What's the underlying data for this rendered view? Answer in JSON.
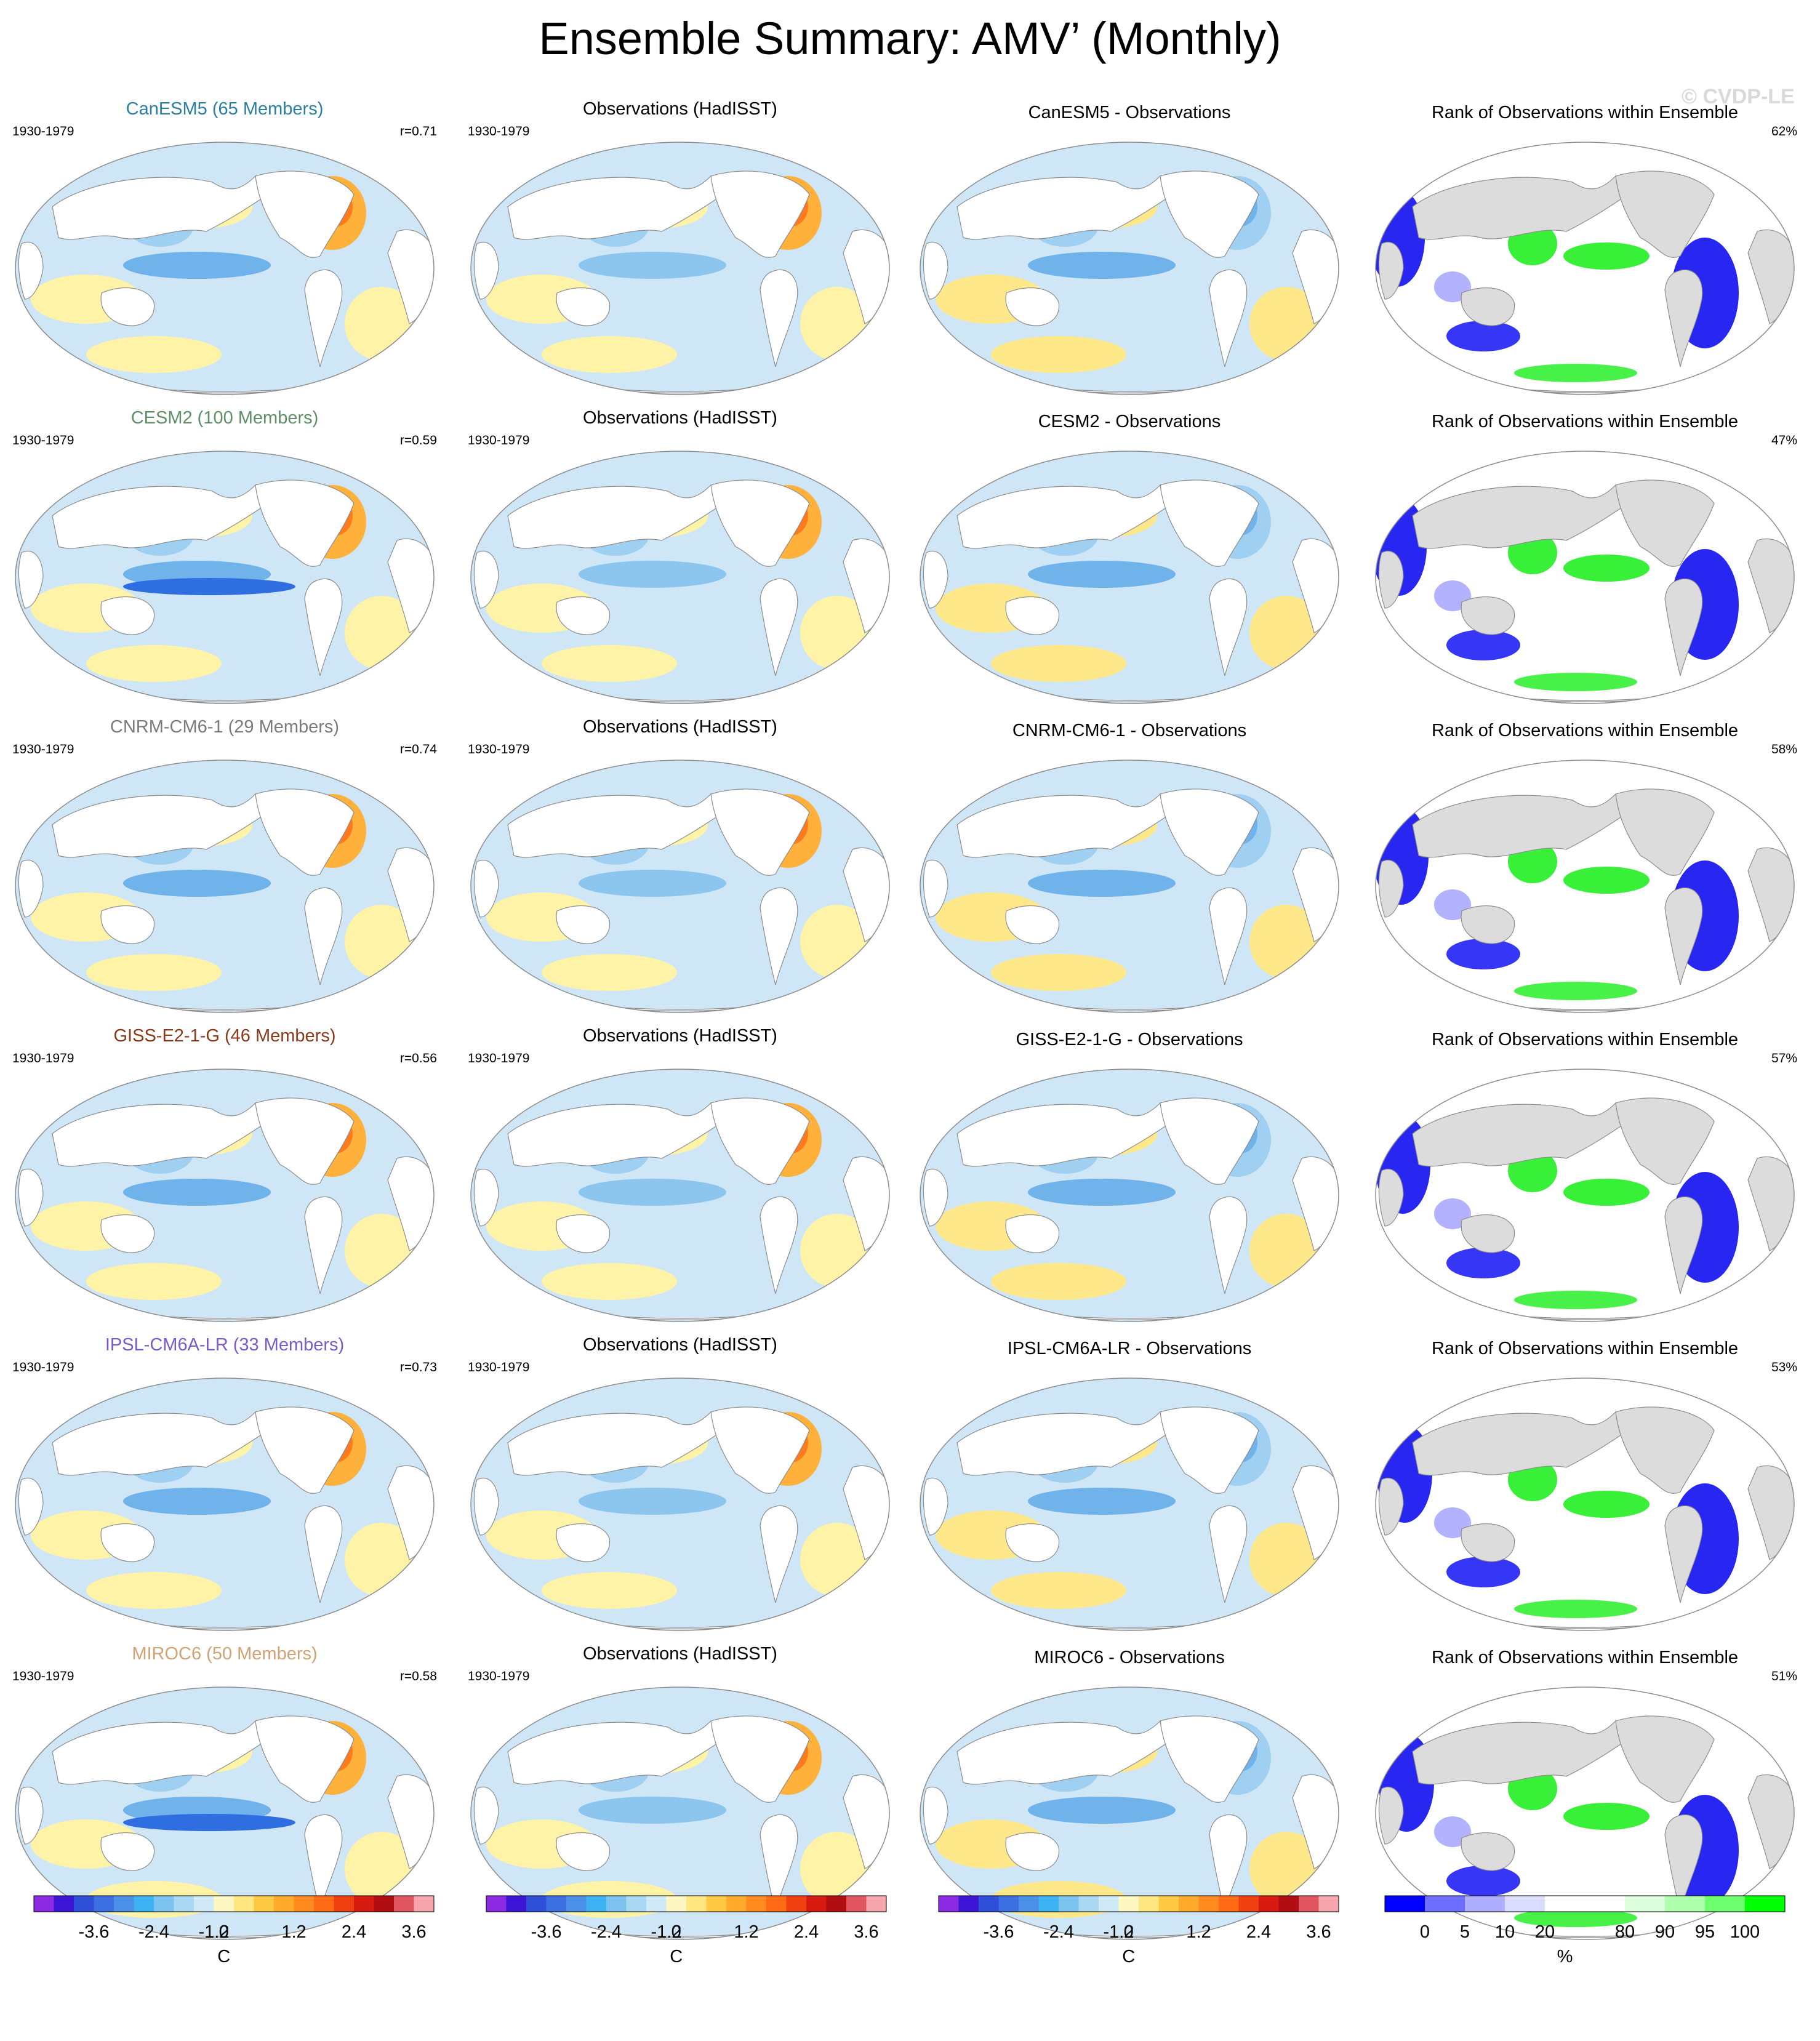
{
  "title": "Ensemble Summary: AMV’ (Monthly)",
  "watermark": "© CVDP-LE",
  "colors": {
    "map_outline": "#8c8c8c",
    "land_rank_panel": "#dcdcdc",
    "warm": "#f29d1f",
    "cool": "#5faee8"
  },
  "chart_data": {
    "type": "heatmap",
    "description_fields": [
      "model",
      "members",
      "period",
      "r",
      "rank_pct"
    ],
    "column_titles": {
      "obs": "Observations (HadISST)",
      "rank": "Rank of Observations within Ensemble"
    },
    "rows": [
      {
        "model": "CanESM5",
        "model_title": "CanESM5 (65 Members)",
        "title_color": "#2a7f9e",
        "period": "1930-1979",
        "r": "r=0.71",
        "obs_period": "1930-1979",
        "diff_title": "CanESM5 - Observations",
        "rank_title": "Rank of Observations within Ensemble",
        "rank_pct": "62%"
      },
      {
        "model": "CESM2",
        "model_title": "CESM2 (100 Members)",
        "title_color": "#5f8f67",
        "period": "1930-1979",
        "r": "r=0.59",
        "obs_period": "1930-1979",
        "diff_title": "CESM2 - Observations",
        "rank_title": "Rank of Observations within Ensemble",
        "rank_pct": "47%"
      },
      {
        "model": "CNRM-CM6-1",
        "model_title": "CNRM-CM6-1 (29 Members)",
        "title_color": "#7b7b7b",
        "period": "1930-1979",
        "r": "r=0.74",
        "obs_period": "1930-1979",
        "diff_title": "CNRM-CM6-1 - Observations",
        "rank_title": "Rank of Observations within Ensemble",
        "rank_pct": "58%"
      },
      {
        "model": "GISS-E2-1-G",
        "model_title": "GISS-E2-1-G (46 Members)",
        "title_color": "#8b3a1a",
        "period": "1930-1979",
        "r": "r=0.56",
        "obs_period": "1930-1979",
        "diff_title": "GISS-E2-1-G - Observations",
        "rank_title": "Rank of Observations within Ensemble",
        "rank_pct": "57%"
      },
      {
        "model": "IPSL-CM6A-LR",
        "model_title": "IPSL-CM6A-LR (33 Members)",
        "title_color": "#7a5bc8",
        "period": "1930-1979",
        "r": "r=0.73",
        "obs_period": "1930-1979",
        "diff_title": "IPSL-CM6A-LR - Observations",
        "rank_title": "Rank of Observations within Ensemble",
        "rank_pct": "53%"
      },
      {
        "model": "MIROC6",
        "model_title": "MIROC6 (50 Members)",
        "title_color": "#d1a273",
        "period": "1930-1979",
        "r": "r=0.58",
        "obs_period": "1930-1979",
        "diff_title": "MIROC6 - Observations",
        "rank_title": "Rank of Observations within Ensemble",
        "rank_pct": "51%"
      }
    ],
    "temp_colorbar": {
      "unit": "C",
      "tick_labels": [
        "-3.6",
        "-2.4",
        "-1.2",
        "0",
        "1.2",
        "2.4",
        "3.6"
      ],
      "colors": [
        "#8a2be2",
        "#3b14d6",
        "#2f4fd8",
        "#3c6fe0",
        "#4a8fe8",
        "#3db2f2",
        "#7cc4ef",
        "#a9d8f2",
        "#cfe9f7",
        "#fff7c2",
        "#ffe680",
        "#ffc845",
        "#ffaa2a",
        "#ff8a1f",
        "#ff6a14",
        "#f04010",
        "#d81b10",
        "#b00d10",
        "#e05560",
        "#f6a5ad"
      ]
    },
    "rank_colorbar": {
      "unit": "%",
      "tick_labels": [
        "0",
        "5",
        "10",
        "20",
        "80",
        "90",
        "95",
        "100"
      ],
      "colors": [
        "#0000ff",
        "#6e6eff",
        "#aeaeff",
        "#dcdcff",
        "#ffffff",
        "#ffffff",
        "#dcffdc",
        "#aeffae",
        "#6eff6e",
        "#00ff00"
      ]
    }
  }
}
